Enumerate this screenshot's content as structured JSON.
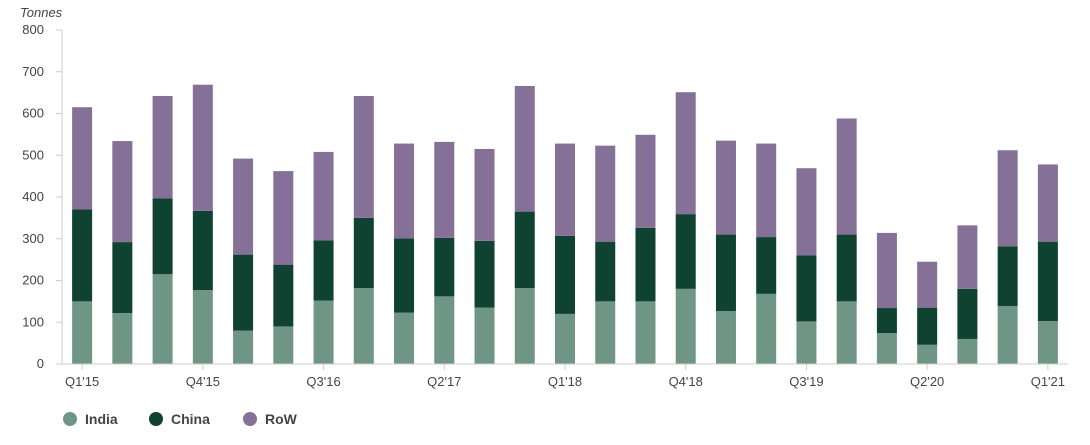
{
  "chart_data": {
    "type": "bar",
    "stacked": true,
    "ylabel": "Tonnes",
    "ylim": [
      0,
      800
    ],
    "yticks": [
      0,
      100,
      200,
      300,
      400,
      500,
      600,
      700,
      800
    ],
    "grid": false,
    "legend_position": "bottom-left",
    "categories": [
      "Q1'15",
      "Q2'15",
      "Q3'15",
      "Q4'15",
      "Q1'16",
      "Q2'16",
      "Q3'16",
      "Q4'16",
      "Q1'17",
      "Q2'17",
      "Q3'17",
      "Q4'17",
      "Q1'18",
      "Q2'18",
      "Q3'18",
      "Q4'18",
      "Q1'19",
      "Q2'19",
      "Q3'19",
      "Q4'19",
      "Q1'20",
      "Q2'20",
      "Q3'20",
      "Q4'20",
      "Q1'21"
    ],
    "shown_tick_labels": [
      "Q1'15",
      "Q4'15",
      "Q3'16",
      "Q2'17",
      "Q1'18",
      "Q4'18",
      "Q3'19",
      "Q2'20",
      "Q1'21"
    ],
    "series": [
      {
        "name": "India",
        "color": "#6e9585",
        "values": [
          150,
          122,
          215,
          177,
          80,
          90,
          152,
          182,
          123,
          162,
          135,
          182,
          120,
          150,
          150,
          180,
          127,
          168,
          102,
          150,
          74,
          46,
          60,
          139,
          103
        ]
      },
      {
        "name": "China",
        "color": "#0f4230",
        "values": [
          220,
          170,
          182,
          190,
          182,
          148,
          144,
          168,
          178,
          140,
          160,
          183,
          187,
          143,
          176,
          179,
          183,
          136,
          158,
          160,
          60,
          89,
          120,
          143,
          190
        ]
      },
      {
        "name": "RoW",
        "color": "#857097",
        "values": [
          245,
          242,
          245,
          302,
          230,
          224,
          212,
          292,
          227,
          230,
          220,
          301,
          221,
          230,
          223,
          292,
          225,
          224,
          209,
          278,
          180,
          110,
          152,
          230,
          185
        ]
      }
    ]
  }
}
